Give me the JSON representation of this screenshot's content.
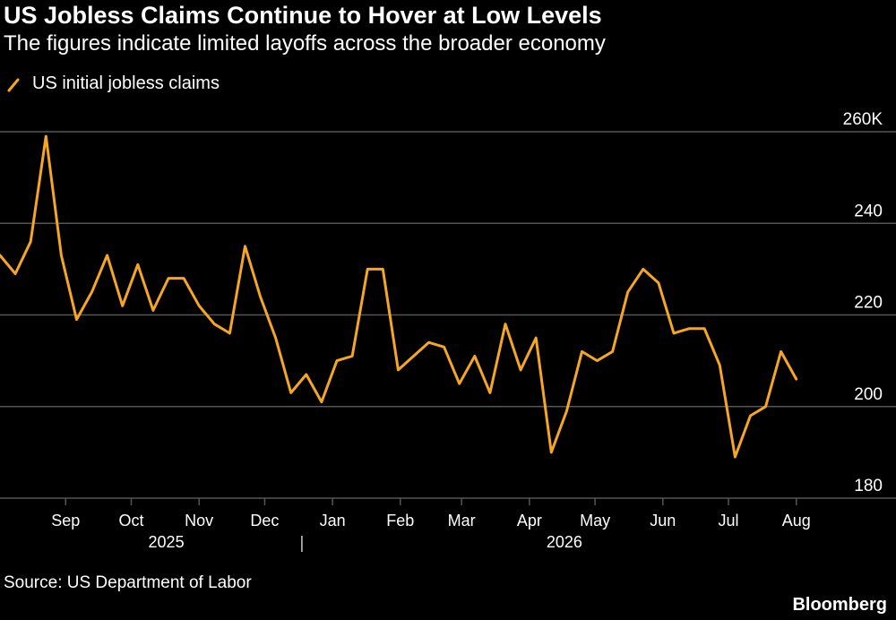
{
  "header": {
    "title": "US Jobless Claims Continue to Hover at Low Levels",
    "subtitle": "The figures indicate limited layoffs across the broader economy"
  },
  "footer": {
    "source": "Source: US Department of Labor",
    "brand": "Bloomberg"
  },
  "colors": {
    "line": "#F5A623",
    "grid": "#555555",
    "text": "#FFFFFF",
    "background": "#000000"
  },
  "chart_data": {
    "type": "line",
    "title": "US Jobless Claims Continue to Hover at Low Levels",
    "subtitle": "The figures indicate limited layoffs across the broader economy",
    "legend": {
      "entries": [
        "US initial jobless claims"
      ],
      "placement": "top-left"
    },
    "ylim": [
      180,
      260
    ],
    "yticks": [
      180,
      200,
      220,
      240,
      260
    ],
    "ytick_labels": [
      "180",
      "200",
      "220",
      "240",
      "260K"
    ],
    "grid": true,
    "x_month_ticks": [
      {
        "label": "Sep",
        "date": "2025-09-15"
      },
      {
        "label": "Oct",
        "date": "2025-10-15"
      },
      {
        "label": "Nov",
        "date": "2025-11-15"
      },
      {
        "label": "Dec",
        "date": "2025-12-15"
      },
      {
        "label": "Jan",
        "date": "2026-01-15"
      },
      {
        "label": "Feb",
        "date": "2026-02-15"
      },
      {
        "label": "Mar",
        "date": "2026-03-15"
      },
      {
        "label": "Apr",
        "date": "2026-04-15"
      },
      {
        "label": "May",
        "date": "2026-05-15"
      },
      {
        "label": "Jun",
        "date": "2026-06-15"
      },
      {
        "label": "Jul",
        "date": "2026-07-15"
      },
      {
        "label": "Aug",
        "date": "2026-08-15"
      }
    ],
    "x_year_labels": [
      {
        "label": "2025",
        "date": "2025-10-31"
      },
      {
        "label": "2026",
        "date": "2026-05-01"
      }
    ],
    "year_divider_date": "2026-01-01",
    "x_range": [
      "2025-08-16",
      "2026-09-05"
    ],
    "series": [
      {
        "name": "US initial jobless claims",
        "x": [
          "2025-08-16",
          "2025-08-23",
          "2025-08-30",
          "2025-09-06",
          "2025-09-13",
          "2025-09-20",
          "2025-09-27",
          "2025-10-04",
          "2025-10-11",
          "2025-10-18",
          "2025-10-25",
          "2025-11-01",
          "2025-11-08",
          "2025-11-15",
          "2025-11-22",
          "2025-11-29",
          "2025-12-06",
          "2025-12-13",
          "2025-12-20",
          "2025-12-27",
          "2026-01-03",
          "2026-01-10",
          "2026-01-17",
          "2026-01-24",
          "2026-01-31",
          "2026-02-07",
          "2026-02-14",
          "2026-02-21",
          "2026-02-28",
          "2026-03-07",
          "2026-03-14",
          "2026-03-21",
          "2026-03-28",
          "2026-04-04",
          "2026-04-11",
          "2026-04-18",
          "2026-04-25",
          "2026-05-02",
          "2026-05-09",
          "2026-05-16",
          "2026-05-23",
          "2026-05-30",
          "2026-06-06",
          "2026-06-13",
          "2026-06-20",
          "2026-06-27",
          "2026-07-04",
          "2026-07-11",
          "2026-07-18",
          "2026-07-25",
          "2026-08-01",
          "2026-08-08",
          "2026-08-15"
        ],
        "values": [
          233,
          229,
          236,
          259,
          233,
          219,
          225,
          233,
          222,
          231,
          221,
          228,
          228,
          222,
          218,
          216,
          235,
          224,
          215,
          203,
          207,
          201,
          210,
          211,
          230,
          230,
          208,
          211,
          214,
          213,
          205,
          211,
          203,
          218,
          208,
          215,
          190,
          199,
          212,
          210,
          212,
          225,
          230,
          227,
          216,
          217,
          217,
          209,
          189,
          198,
          200,
          212,
          206
        ]
      }
    ]
  }
}
